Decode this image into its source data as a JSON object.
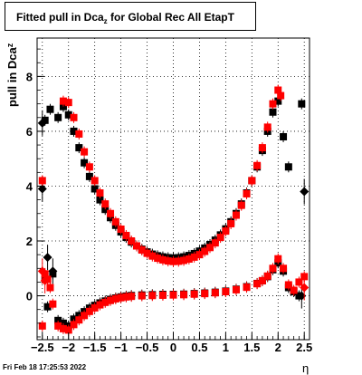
{
  "title": {
    "main": "Fitted pull in Dca",
    "sub": "z",
    "rest": " for Global Rec All EtapT"
  },
  "timestamp": "Fri Feb 18 17:25:53 2022",
  "colors": {
    "series1": "#000000",
    "series2": "#ff0000",
    "grid": "#000000"
  },
  "chart_data": {
    "type": "scatter",
    "xlabel": "η",
    "ylabel": "pull in Dca",
    "ylabel_sub": "z",
    "xlim": [
      -2.6,
      2.6
    ],
    "ylim": [
      -1.6,
      9.4
    ],
    "grid": true,
    "xticks": [
      -2.5,
      -2,
      -1.5,
      -1,
      -0.5,
      0,
      0.5,
      1,
      1.5,
      2,
      2.5
    ],
    "xtick_labels": [
      "−2.5",
      "−2",
      "−1.5",
      "−1",
      "−0.5",
      "0",
      "0.5",
      "1",
      "1.5",
      "2",
      "2.5"
    ],
    "yticks": [
      0,
      2,
      4,
      6,
      8
    ],
    "ytick_labels": [
      "0",
      "2",
      "4",
      "6",
      "8"
    ],
    "series": [
      {
        "color": "#000000",
        "upper": [
          [
            -2.45,
            6.4
          ],
          [
            -2.35,
            6.8
          ],
          [
            -2.2,
            6.5
          ],
          [
            -2.1,
            6.9
          ],
          [
            -2.0,
            6.6
          ],
          [
            -1.9,
            6.0
          ],
          [
            -1.8,
            5.4
          ],
          [
            -1.7,
            4.85
          ],
          [
            -1.6,
            4.35
          ],
          [
            -1.5,
            3.9
          ],
          [
            -1.4,
            3.5
          ],
          [
            -1.3,
            3.15
          ],
          [
            -1.2,
            2.85
          ],
          [
            -1.1,
            2.57
          ],
          [
            -1.0,
            2.33
          ],
          [
            -0.9,
            2.13
          ],
          [
            -0.8,
            1.96
          ],
          [
            -0.7,
            1.82
          ],
          [
            -0.6,
            1.7
          ],
          [
            -0.5,
            1.6
          ],
          [
            -0.4,
            1.52
          ],
          [
            -0.3,
            1.46
          ],
          [
            -0.2,
            1.42
          ],
          [
            -0.1,
            1.39
          ],
          [
            0.0,
            1.38
          ],
          [
            0.1,
            1.39
          ],
          [
            0.2,
            1.42
          ],
          [
            0.3,
            1.47
          ],
          [
            0.4,
            1.54
          ],
          [
            0.5,
            1.63
          ],
          [
            0.6,
            1.74
          ],
          [
            0.7,
            1.87
          ],
          [
            0.8,
            2.03
          ],
          [
            0.9,
            2.22
          ],
          [
            1.0,
            2.44
          ],
          [
            1.1,
            2.7
          ],
          [
            1.2,
            3.0
          ],
          [
            1.3,
            3.35
          ],
          [
            1.4,
            3.75
          ],
          [
            1.5,
            4.2
          ],
          [
            1.6,
            4.7
          ],
          [
            1.7,
            5.3
          ],
          [
            1.8,
            6.0
          ],
          [
            1.9,
            6.7
          ],
          [
            2.0,
            7.1
          ],
          [
            2.1,
            5.8
          ],
          [
            2.2,
            4.7
          ],
          [
            2.45,
            7.0
          ]
        ],
        "lower": [
          [
            -2.45,
            0.6
          ],
          [
            -2.4,
            -0.4
          ],
          [
            -2.3,
            0.8
          ],
          [
            -2.2,
            -0.9
          ],
          [
            -2.1,
            -1.0
          ],
          [
            -2.0,
            -1.1
          ],
          [
            -1.9,
            -0.85
          ],
          [
            -1.8,
            -0.72
          ],
          [
            -1.7,
            -0.58
          ],
          [
            -1.6,
            -0.45
          ],
          [
            -1.5,
            -0.35
          ],
          [
            -1.4,
            -0.26
          ],
          [
            -1.3,
            -0.19
          ],
          [
            -1.2,
            -0.13
          ],
          [
            -1.1,
            -0.08
          ],
          [
            -1.0,
            -0.04
          ],
          [
            -0.9,
            -0.01
          ],
          [
            -0.8,
            0.01
          ],
          [
            -0.6,
            0.03
          ],
          [
            -0.4,
            0.04
          ],
          [
            -0.2,
            0.05
          ],
          [
            0.0,
            0.05
          ],
          [
            0.2,
            0.06
          ],
          [
            0.4,
            0.08
          ],
          [
            0.6,
            0.1
          ],
          [
            0.8,
            0.13
          ],
          [
            1.0,
            0.17
          ],
          [
            1.2,
            0.24
          ],
          [
            1.4,
            0.33
          ],
          [
            1.6,
            0.45
          ],
          [
            1.7,
            0.55
          ],
          [
            1.8,
            0.7
          ],
          [
            1.9,
            0.95
          ],
          [
            2.0,
            1.2
          ],
          [
            2.1,
            0.9
          ],
          [
            2.2,
            0.3
          ],
          [
            2.3,
            0.15
          ],
          [
            2.4,
            0.0
          ]
        ],
        "outliers": [
          [
            -2.5,
            6.3
          ],
          [
            -2.4,
            1.4
          ],
          [
            -2.3,
            0.9
          ],
          [
            -2.5,
            3.9
          ],
          [
            2.5,
            3.8
          ],
          [
            2.45,
            0.0
          ]
        ]
      },
      {
        "color": "#ff0000",
        "upper": [
          [
            -2.5,
            4.2
          ],
          [
            -2.1,
            7.1
          ],
          [
            -2.0,
            7.05
          ],
          [
            -1.9,
            6.5
          ],
          [
            -1.8,
            5.9
          ],
          [
            -1.7,
            5.25
          ],
          [
            -1.6,
            4.7
          ],
          [
            -1.5,
            4.2
          ],
          [
            -1.4,
            3.75
          ],
          [
            -1.3,
            3.35
          ],
          [
            -1.2,
            3.0
          ],
          [
            -1.1,
            2.7
          ],
          [
            -1.0,
            2.43
          ],
          [
            -0.9,
            2.2
          ],
          [
            -0.8,
            2.0
          ],
          [
            -0.7,
            1.82
          ],
          [
            -0.6,
            1.67
          ],
          [
            -0.5,
            1.55
          ],
          [
            -0.4,
            1.45
          ],
          [
            -0.3,
            1.37
          ],
          [
            -0.2,
            1.31
          ],
          [
            -0.1,
            1.27
          ],
          [
            0.0,
            1.25
          ],
          [
            0.1,
            1.26
          ],
          [
            0.2,
            1.29
          ],
          [
            0.3,
            1.34
          ],
          [
            0.4,
            1.41
          ],
          [
            0.5,
            1.5
          ],
          [
            0.6,
            1.62
          ],
          [
            0.7,
            1.76
          ],
          [
            0.8,
            1.93
          ],
          [
            0.9,
            2.13
          ],
          [
            1.0,
            2.36
          ],
          [
            1.1,
            2.63
          ],
          [
            1.2,
            2.94
          ],
          [
            1.3,
            3.3
          ],
          [
            1.4,
            3.72
          ],
          [
            1.5,
            4.2
          ],
          [
            1.6,
            4.75
          ],
          [
            1.7,
            5.4
          ],
          [
            1.8,
            6.15
          ],
          [
            1.9,
            7.0
          ],
          [
            2.0,
            7.5
          ],
          [
            2.05,
            7.3
          ]
        ],
        "lower": [
          [
            -2.5,
            -1.1
          ],
          [
            -2.45,
            0.8
          ],
          [
            -2.4,
            0.6
          ],
          [
            -2.35,
            0.3
          ],
          [
            -2.3,
            -0.3
          ],
          [
            -2.2,
            -1.1
          ],
          [
            -2.1,
            -1.2
          ],
          [
            -2.0,
            -1.25
          ],
          [
            -1.9,
            -1.05
          ],
          [
            -1.8,
            -0.88
          ],
          [
            -1.7,
            -0.72
          ],
          [
            -1.6,
            -0.57
          ],
          [
            -1.5,
            -0.44
          ],
          [
            -1.4,
            -0.33
          ],
          [
            -1.3,
            -0.24
          ],
          [
            -1.2,
            -0.17
          ],
          [
            -1.1,
            -0.11
          ],
          [
            -1.0,
            -0.07
          ],
          [
            -0.9,
            -0.04
          ],
          [
            -0.8,
            -0.02
          ],
          [
            -0.6,
            0.0
          ],
          [
            -0.4,
            0.01
          ],
          [
            -0.2,
            0.02
          ],
          [
            0.0,
            0.03
          ],
          [
            0.2,
            0.04
          ],
          [
            0.4,
            0.06
          ],
          [
            0.6,
            0.08
          ],
          [
            0.8,
            0.11
          ],
          [
            1.0,
            0.15
          ],
          [
            1.2,
            0.22
          ],
          [
            1.4,
            0.31
          ],
          [
            1.6,
            0.44
          ],
          [
            1.7,
            0.55
          ],
          [
            1.8,
            0.72
          ],
          [
            1.9,
            1.0
          ],
          [
            2.0,
            1.35
          ],
          [
            2.1,
            1.0
          ],
          [
            2.2,
            0.4
          ],
          [
            2.3,
            0.2
          ],
          [
            2.4,
            0.5
          ],
          [
            2.5,
            0.7
          ]
        ],
        "outliers": [
          [
            -2.5,
            0.9
          ],
          [
            -2.45,
            0.55
          ],
          [
            2.5,
            0.3
          ]
        ]
      }
    ]
  }
}
